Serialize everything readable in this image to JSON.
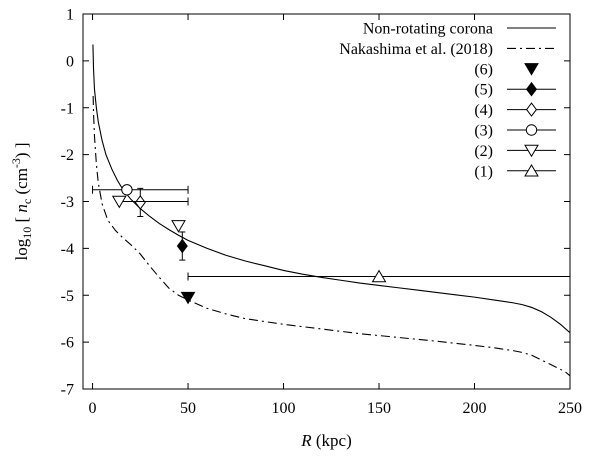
{
  "chart_data": {
    "type": "line",
    "title": "",
    "xlabel": "R",
    "xlabel_unit": " (kpc)",
    "ylabel": {
      "prefix": "log",
      "base": "10",
      "bracket_open": " [ ",
      "var": "n",
      "var_sub": "c",
      "unit_open": " (cm",
      "unit_exp": "-3",
      "unit_close": ") ]"
    },
    "xlim": [
      -5,
      250
    ],
    "ylim": [
      -7,
      1
    ],
    "xticks": [
      0,
      50,
      100,
      150,
      200,
      250
    ],
    "yticks": [
      1,
      0,
      -1,
      -2,
      -3,
      -4,
      -5,
      -6,
      -7
    ],
    "grid": false,
    "legend_position": "top-right",
    "colors": {
      "line": "#000000",
      "background": "#ffffff"
    },
    "series": [
      {
        "name": "Non-rotating corona",
        "kind": "line",
        "style": "solid",
        "x": [
          0.2,
          0.5,
          1,
          2,
          3,
          5,
          7,
          10,
          13,
          16,
          20,
          25,
          30,
          35,
          40,
          45,
          50,
          60,
          70,
          80,
          90,
          100,
          110,
          120,
          130,
          140,
          150,
          160,
          170,
          180,
          190,
          200,
          210,
          220,
          225,
          230,
          235,
          240,
          245,
          250
        ],
        "y": [
          0.35,
          -0.15,
          -0.6,
          -1.0,
          -1.3,
          -1.7,
          -2.0,
          -2.3,
          -2.55,
          -2.75,
          -2.95,
          -3.15,
          -3.32,
          -3.47,
          -3.6,
          -3.72,
          -3.83,
          -4.0,
          -4.15,
          -4.27,
          -4.37,
          -4.47,
          -4.55,
          -4.62,
          -4.68,
          -4.74,
          -4.79,
          -4.84,
          -4.89,
          -4.94,
          -4.99,
          -5.04,
          -5.1,
          -5.16,
          -5.2,
          -5.26,
          -5.35,
          -5.47,
          -5.62,
          -5.8
        ]
      },
      {
        "name": "Nakashima et al. (2018)",
        "kind": "line",
        "style": "dash-dot",
        "x": [
          0.3,
          0.6,
          1,
          2,
          3,
          5,
          8,
          12,
          16,
          20,
          25,
          30,
          35,
          40,
          45,
          50,
          60,
          70,
          80,
          100,
          120,
          140,
          160,
          180,
          200,
          210,
          220,
          225,
          230,
          235,
          240,
          245,
          248,
          250
        ],
        "y": [
          -0.75,
          -1.2,
          -1.6,
          -2.2,
          -2.6,
          -3.05,
          -3.4,
          -3.62,
          -3.78,
          -3.92,
          -4.12,
          -4.38,
          -4.62,
          -4.85,
          -5.0,
          -5.1,
          -5.28,
          -5.4,
          -5.5,
          -5.62,
          -5.72,
          -5.82,
          -5.9,
          -5.98,
          -6.07,
          -6.12,
          -6.18,
          -6.22,
          -6.28,
          -6.38,
          -6.48,
          -6.58,
          -6.65,
          -6.72
        ]
      },
      {
        "name": "(6)",
        "kind": "points",
        "marker": "triangle-down-filled",
        "points": [
          {
            "x": 50,
            "y": -5.05
          }
        ]
      },
      {
        "name": "(5)",
        "kind": "points",
        "marker": "diamond-filled",
        "points": [
          {
            "x": 47,
            "y": -3.95,
            "yerr": 0.3
          }
        ]
      },
      {
        "name": "(4)",
        "kind": "points",
        "marker": "diamond-open",
        "points": [
          {
            "x": 25,
            "y": -3.02,
            "yerr": 0.3
          }
        ]
      },
      {
        "name": "(3)",
        "kind": "points",
        "marker": "circle-open",
        "points": [
          {
            "x": 18,
            "y": -2.75,
            "xerr_low": 0,
            "xerr_high": 50
          }
        ]
      },
      {
        "name": "(2)",
        "kind": "points",
        "marker": "triangle-down-open",
        "points": [
          {
            "x": 14,
            "y": -3.0,
            "xerr_low": 14,
            "xerr_high": 50
          },
          {
            "x": 45,
            "y": -3.52
          }
        ]
      },
      {
        "name": "(1)",
        "kind": "points",
        "marker": "triangle-up-open",
        "points": [
          {
            "x": 150,
            "y": -4.6,
            "xerr_low": 50,
            "xerr_high": 250
          }
        ]
      }
    ]
  }
}
